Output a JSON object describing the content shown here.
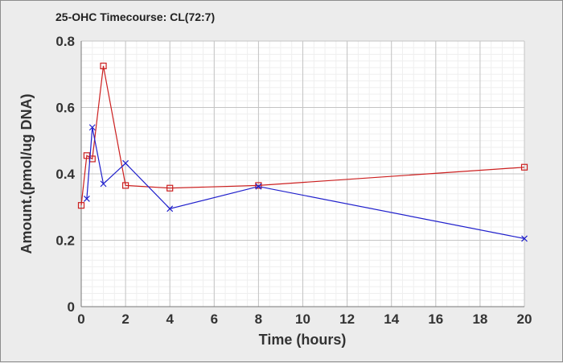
{
  "chart_data": {
    "type": "line",
    "title": "25-OHC Timecourse: CL(72:7)",
    "xlabel": "Time (hours)",
    "ylabel": "Amount.(pmol/ug DNA)",
    "xlim": [
      0,
      20
    ],
    "ylim": [
      0,
      0.8
    ],
    "x_ticks": [
      "0",
      "2",
      "4",
      "6",
      "8",
      "10",
      "12",
      "14",
      "16",
      "18",
      "20"
    ],
    "y_ticks": [
      "0",
      "0.2",
      "0.4",
      "0.6",
      "0.8"
    ],
    "grid": true,
    "legend": "none",
    "series": [
      {
        "color": "#cc1f1f",
        "marker": "square",
        "x": [
          0,
          0.25,
          0.5,
          1,
          2,
          4,
          8,
          20
        ],
        "y": [
          0.305,
          0.455,
          0.445,
          0.725,
          0.365,
          0.357,
          0.365,
          0.42
        ]
      },
      {
        "color": "#1f1fcc",
        "marker": "x",
        "x": [
          0.25,
          0.5,
          1,
          2,
          4,
          8,
          20
        ],
        "y": [
          0.325,
          0.54,
          0.37,
          0.432,
          0.295,
          0.362,
          0.205
        ]
      }
    ]
  }
}
